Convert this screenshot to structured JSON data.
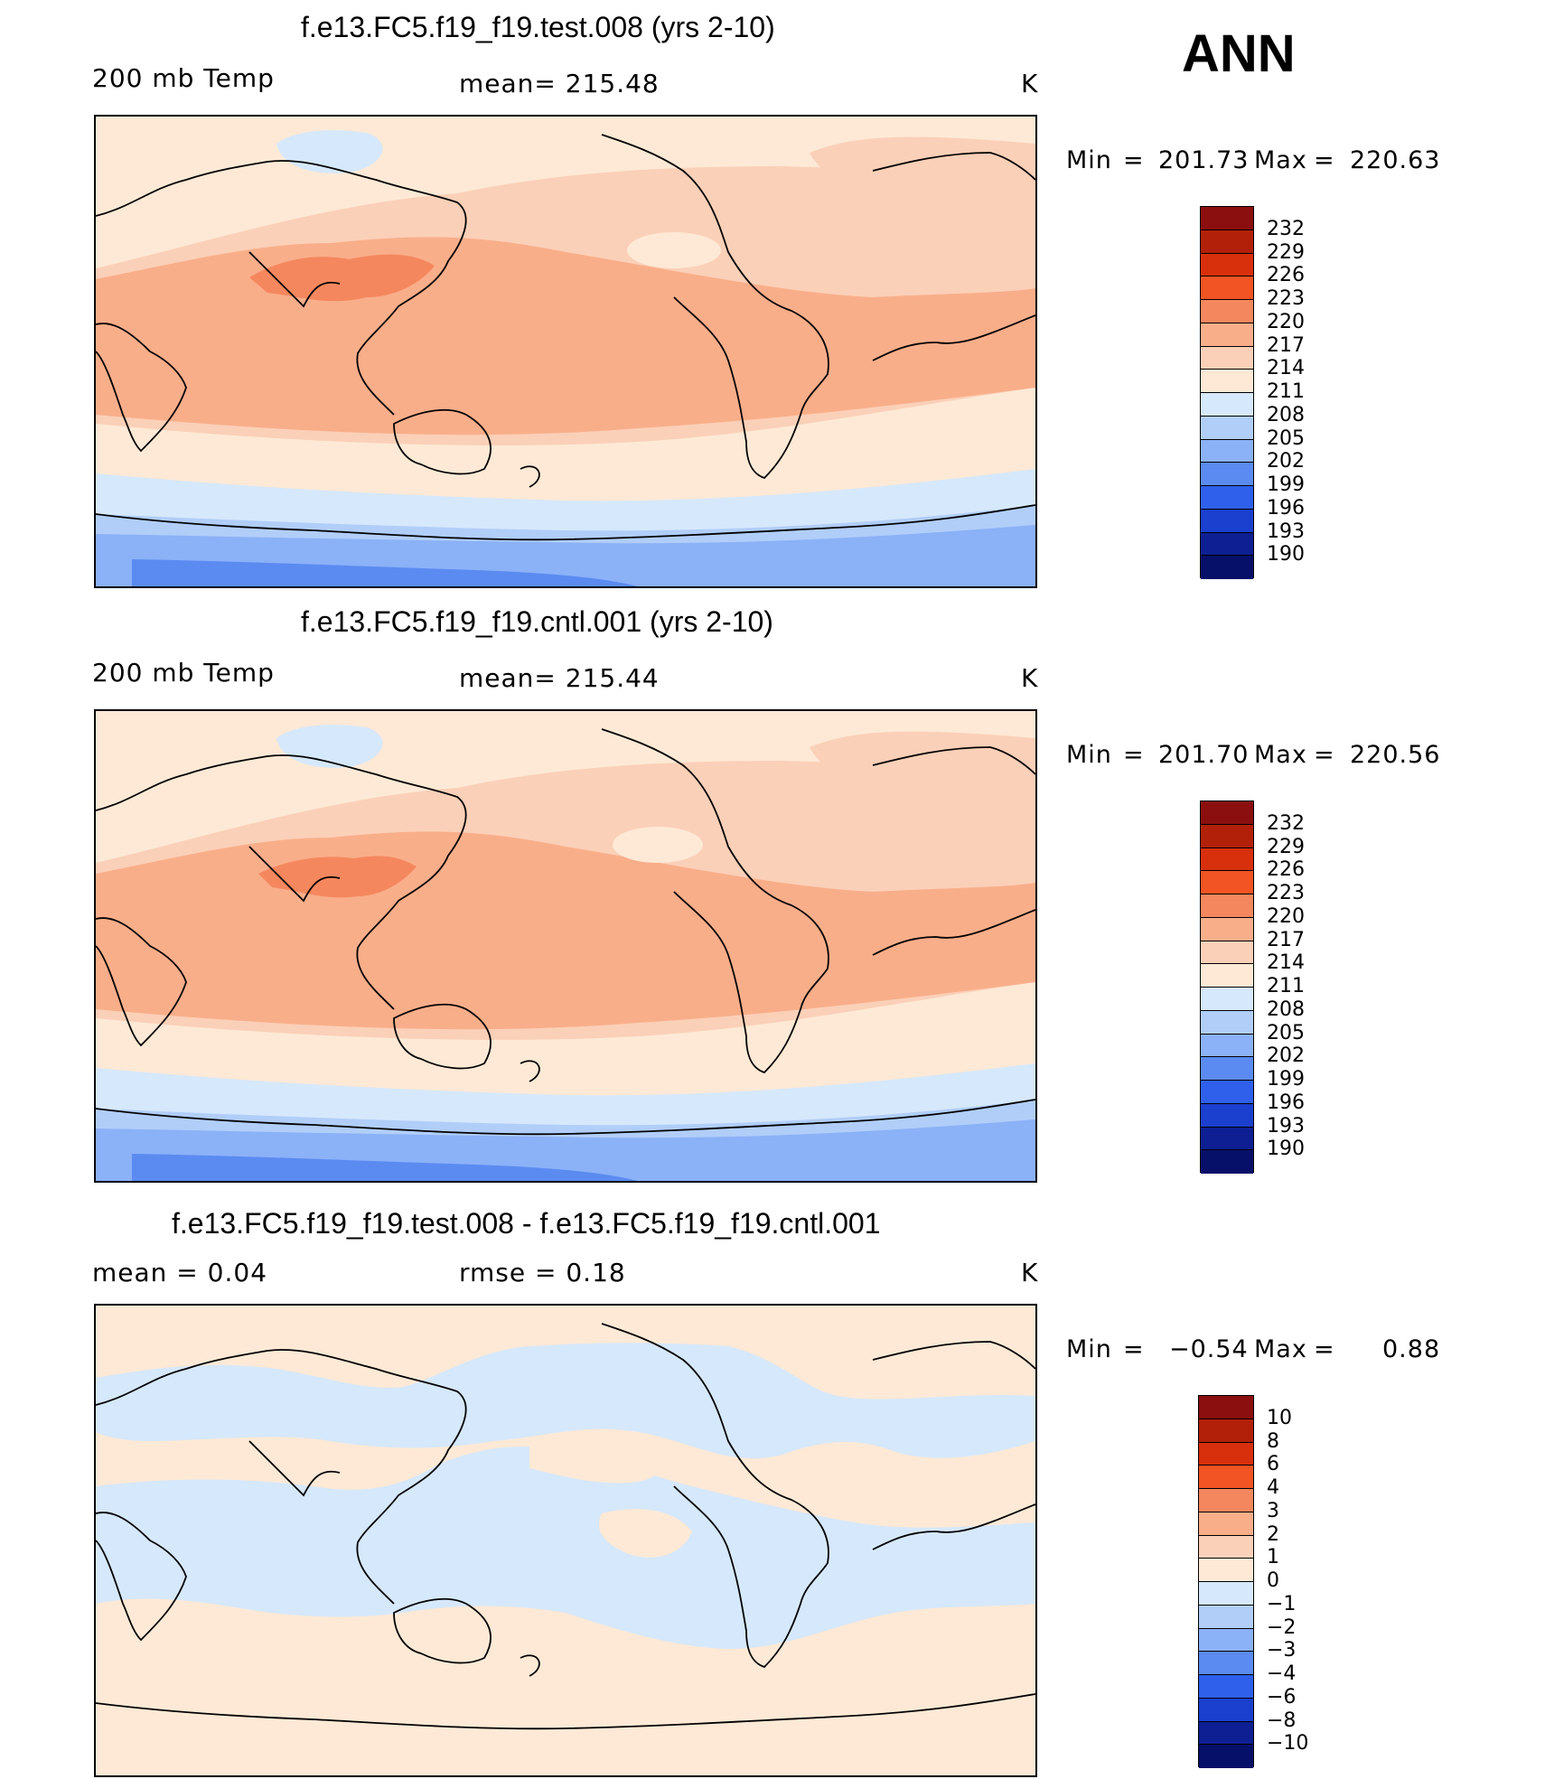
{
  "season": "ANN",
  "units": "K",
  "panels": [
    {
      "title": "f.e13.FC5.f19_f19.test.008 (yrs 2-10)",
      "left_label": "200 mb Temp",
      "center_label": "mean=  215.48",
      "right_label": "K",
      "min_label": "Min",
      "min_eq": "=",
      "min_value": "201.73",
      "max_label": "Max",
      "max_eq": "=",
      "max_value": "220.63",
      "levels": [
        "232",
        "229",
        "226",
        "223",
        "220",
        "217",
        "214",
        "211",
        "208",
        "205",
        "202",
        "199",
        "196",
        "193",
        "190"
      ]
    },
    {
      "title": "f.e13.FC5.f19_f19.cntl.001 (yrs 2-10)",
      "left_label": "200 mb Temp",
      "center_label": "mean=  215.44",
      "right_label": "K",
      "min_label": "Min",
      "min_eq": "=",
      "min_value": "201.70",
      "max_label": "Max",
      "max_eq": "=",
      "max_value": "220.56",
      "levels": [
        "232",
        "229",
        "226",
        "223",
        "220",
        "217",
        "214",
        "211",
        "208",
        "205",
        "202",
        "199",
        "196",
        "193",
        "190"
      ]
    },
    {
      "title": "f.e13.FC5.f19_f19.test.008 - f.e13.FC5.f19_f19.cntl.001",
      "left_label": "mean  =      0.04",
      "center_label": "rmse  =      0.18",
      "right_label": "K",
      "min_label": "Min",
      "min_eq": "=",
      "min_value": "−0.54",
      "max_label": "Max",
      "max_eq": "=",
      "max_value": "0.88",
      "levels": [
        "10",
        "8",
        "6",
        "4",
        "3",
        "2",
        "1",
        "0",
        "−1",
        "−2",
        "−3",
        "−4",
        "−6",
        "−8",
        "−10"
      ]
    }
  ],
  "colors": {
    "abs_scale": [
      "#8b0f0f",
      "#b3200a",
      "#d8300c",
      "#f25423",
      "#f5875e",
      "#f9ae8a",
      "#fbd0b8",
      "#fde9d6",
      "#d6e8fb",
      "#b1cef9",
      "#8bb1f7",
      "#5b8bf1",
      "#2f60ec",
      "#1b3fcf",
      "#0e1f93",
      "#071068"
    ],
    "diff_scale": [
      "#8b0f0f",
      "#b3200a",
      "#d8300c",
      "#f25423",
      "#f5875e",
      "#f9ae8a",
      "#fbd0b8",
      "#fde9d6",
      "#d6e8fb",
      "#b1cef9",
      "#8bb1f7",
      "#5b8bf1",
      "#2f60ec",
      "#1b3fcf",
      "#0e1f93",
      "#071068"
    ]
  }
}
